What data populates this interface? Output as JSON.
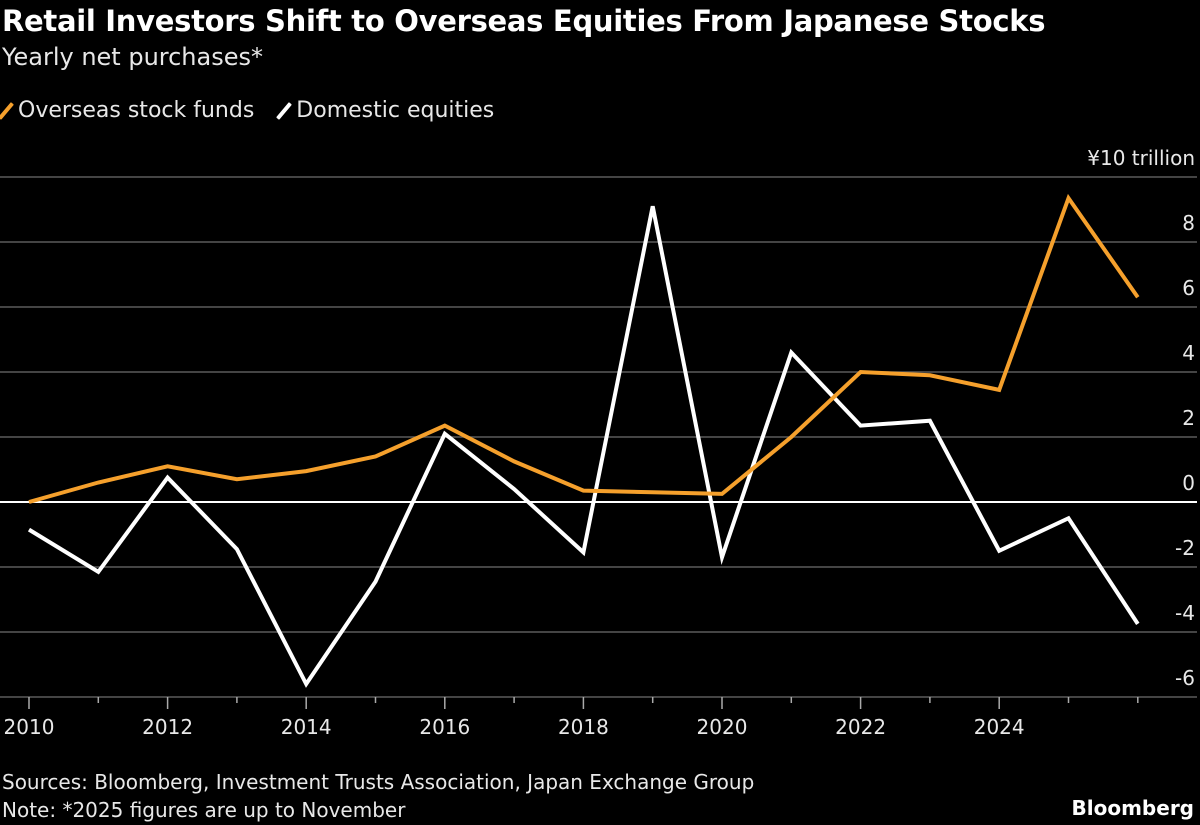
{
  "title": "Retail Investors Shift to Overseas Equities From Japanese Stocks",
  "subtitle": "Yearly net purchases*",
  "footer": {
    "sources": "Sources: Bloomberg, Investment Trusts Association, Japan Exchange Group",
    "note": "Note: *2025 figures are up to November"
  },
  "logo": "Bloomberg",
  "chart_data": {
    "type": "line",
    "title": "Retail Investors Shift to Overseas Equities From Japanese Stocks",
    "subtitle": "Yearly net purchases*",
    "y_unit_label": "¥10 trillion",
    "ylim": [
      -6,
      10
    ],
    "yticks": [
      10,
      8,
      6,
      4,
      2,
      0,
      -2,
      -4,
      -6
    ],
    "ytick_labels": [
      "¥10 trillion",
      "8",
      "6",
      "4",
      "2",
      "0",
      "-2",
      "-4",
      "-6"
    ],
    "xlim": [
      2010,
      2027
    ],
    "xticks": [
      2010,
      2012,
      2014,
      2016,
      2018,
      2020,
      2022,
      2024
    ],
    "xtick_labels": [
      "2010",
      "2012",
      "2014",
      "2016",
      "2018",
      "2020",
      "2022",
      "2024"
    ],
    "grid": true,
    "legend_placement": "top-left",
    "x": [
      2010,
      2011,
      2012,
      2013,
      2014,
      2015,
      2016,
      2017,
      2018,
      2019,
      2020,
      2021,
      2022,
      2023,
      2024,
      2025,
      2026
    ],
    "series": [
      {
        "name": "Overseas stock funds",
        "color": "#f5a02c",
        "values": [
          0.0,
          0.6,
          1.1,
          0.7,
          0.95,
          1.4,
          2.35,
          1.25,
          0.35,
          0.3,
          0.25,
          2.0,
          4.0,
          3.9,
          3.45,
          9.35,
          6.3
        ]
      },
      {
        "name": "Domestic equities",
        "color": "#ffffff",
        "values": [
          -0.85,
          -2.15,
          0.75,
          -1.45,
          -5.6,
          -2.45,
          2.1,
          0.4,
          -1.55,
          9.1,
          -1.7,
          4.6,
          2.35,
          2.5,
          -1.5,
          -0.5,
          -3.75
        ]
      }
    ]
  }
}
